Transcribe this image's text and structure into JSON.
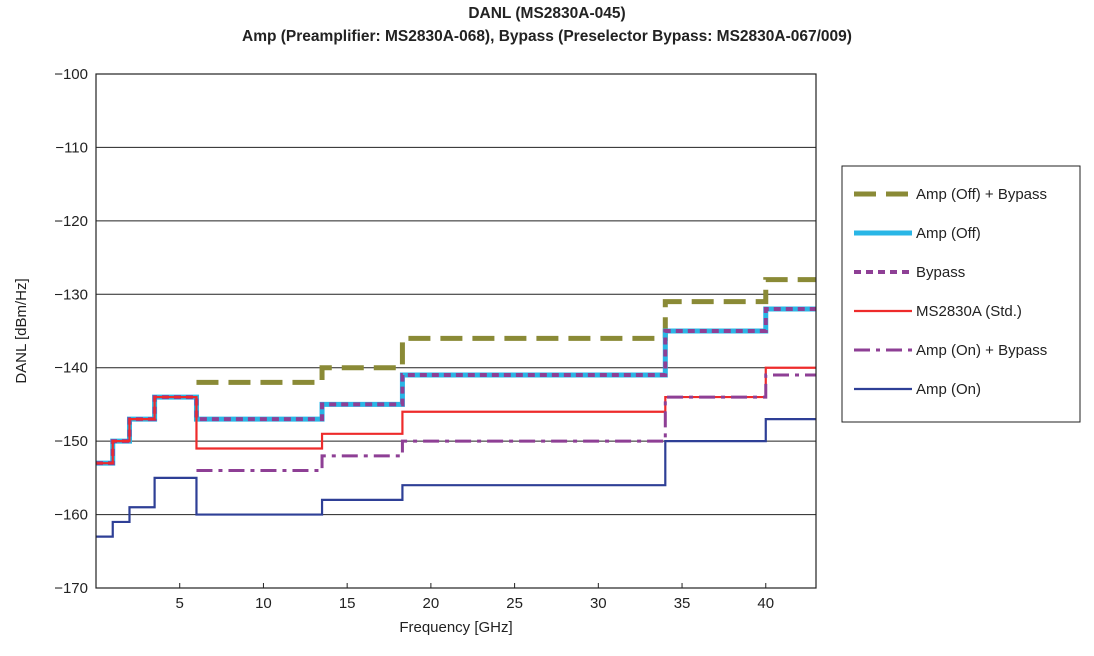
{
  "chart_data": {
    "type": "line",
    "title": "DANL (MS2830A-045)",
    "subtitle": "Amp (Preamplifier: MS2830A-068), Bypass (Preselector Bypass: MS2830A-067/009)",
    "xlabel": "Frequency [GHz]",
    "ylabel": "DANL [dBm/Hz]",
    "xlim": [
      0,
      43
    ],
    "ylim": [
      -170,
      -100
    ],
    "x_ticks": [
      5,
      10,
      15,
      20,
      25,
      30,
      35,
      40
    ],
    "y_ticks": [
      -100,
      -110,
      -120,
      -130,
      -140,
      -150,
      -160,
      -170
    ],
    "x_tick_labels": [
      "5",
      "10",
      "15",
      "20",
      "25",
      "30",
      "35",
      "40"
    ],
    "y_tick_labels": [
      "−100",
      "−110",
      "−120",
      "−130",
      "−140",
      "−150",
      "−160",
      "−170"
    ],
    "grid": "horizontal",
    "legend_position": "right",
    "step": "post",
    "series": [
      {
        "name": "Amp (Off) + Bypass",
        "color": "#8a8a36",
        "style": "dashed-thick",
        "x": [
          6,
          13.5,
          18.3,
          34,
          40,
          43
        ],
        "y": [
          -142,
          -140,
          -136,
          -131,
          -128,
          -128
        ]
      },
      {
        "name": "Amp (Off)",
        "color": "#29b6e6",
        "style": "solid-thick",
        "x": [
          0,
          1,
          2,
          3.5,
          6,
          13.5,
          18.3,
          34,
          40,
          43
        ],
        "y": [
          -153,
          -150,
          -147,
          -144,
          -147,
          -145,
          -141,
          -135,
          -132,
          -132
        ]
      },
      {
        "name": "Bypass",
        "color": "#8e3f95",
        "style": "dotted",
        "x": [
          0,
          1,
          2,
          3.5,
          6,
          13.5,
          18.3,
          34,
          40,
          43
        ],
        "y": [
          -153,
          -150,
          -147,
          -144,
          -147,
          -145,
          -141,
          -135,
          -132,
          -132
        ]
      },
      {
        "name": "MS2830A (Std.)",
        "color": "#ee2b2b",
        "style": "solid",
        "x": [
          0,
          1,
          2,
          3.5,
          6,
          13.5,
          18.3,
          34,
          40,
          43
        ],
        "y": [
          -153,
          -150,
          -147,
          -144,
          -151,
          -149,
          -146,
          -144,
          -140,
          -140
        ]
      },
      {
        "name": "Amp (On) + Bypass",
        "color": "#8e3f95",
        "style": "dashdot",
        "x": [
          6,
          13.5,
          18.3,
          34,
          40,
          43
        ],
        "y": [
          -154,
          -152,
          -150,
          -144,
          -141,
          -141
        ]
      },
      {
        "name": "Amp (On)",
        "color": "#2e3f96",
        "style": "solid",
        "x": [
          0,
          1,
          2,
          3.5,
          6,
          13.5,
          18.3,
          34,
          40,
          43
        ],
        "y": [
          -163,
          -161,
          -159,
          -155,
          -160,
          -158,
          -156,
          -150,
          -147,
          -147
        ]
      }
    ]
  }
}
